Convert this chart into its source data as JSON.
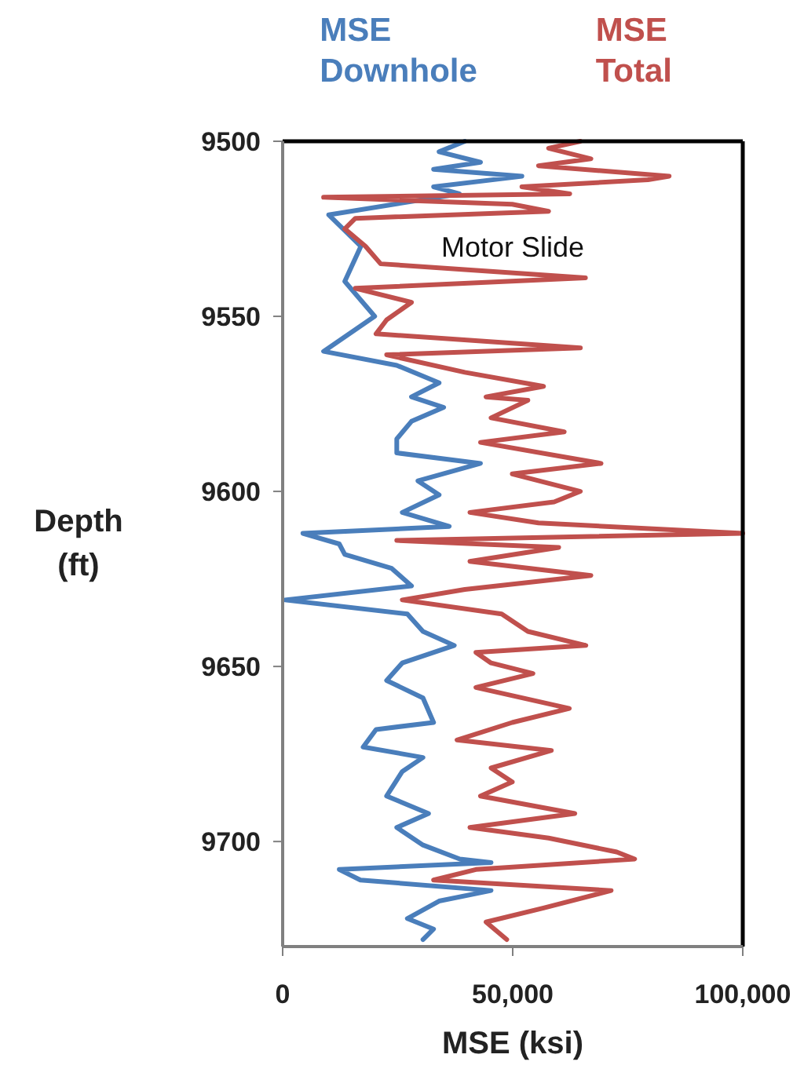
{
  "chart_data": {
    "type": "line",
    "xlabel": "MSE (ksi)",
    "ylabel": "Depth (ft)",
    "xlim": [
      0,
      100000
    ],
    "xticks": [
      0,
      {
        "value": 50000,
        "label": "50,000"
      },
      {
        "value": 100000,
        "label": "100,000"
      }
    ],
    "ylim": [
      9730,
      9500
    ],
    "yticks": [
      9500,
      9550,
      9600,
      9650,
      9700
    ],
    "grid": false,
    "legend": "top",
    "marker": "none",
    "line_style": "solid",
    "annotations": [
      "Motor Slide"
    ],
    "series": [
      {
        "name": "MSE Downhole",
        "color": "#4a7ebb",
        "x": [
          39600,
          34000,
          43000,
          32800,
          52000,
          32800,
          38400,
          10000,
          17000,
          13500,
          20000,
          8900,
          24800,
          34000,
          28000,
          35000,
          28000,
          24800,
          24800,
          43000,
          29400,
          34000,
          26000,
          36200,
          4400,
          12300,
          13500,
          23700,
          28000,
          500,
          27100,
          30500,
          37300,
          26000,
          22600,
          30500,
          32800,
          20300,
          17500,
          30500,
          26000,
          22600,
          31700,
          24800,
          30500,
          38500,
          45300,
          12300,
          16900,
          45300,
          34000,
          27100,
          32800,
          30500
        ],
        "values": [
          9500,
          9503,
          9506,
          9508,
          9510,
          9513,
          9515,
          9521,
          9530,
          9540,
          9550,
          9560,
          9564,
          9569,
          9573,
          9576,
          9580,
          9585,
          9589,
          9592,
          9597,
          9601,
          9606,
          9610,
          9612,
          9615,
          9618,
          9622,
          9627,
          9631,
          9635,
          9640,
          9644,
          9649,
          9654,
          9659,
          9666,
          9668,
          9673,
          9676,
          9680,
          9687,
          9692,
          9696,
          9701,
          9705,
          9706,
          9708,
          9711,
          9714,
          9717,
          9722,
          9725,
          9728
        ]
      },
      {
        "name": "MSE Total",
        "color": "#c0504d",
        "x": [
          64700,
          57800,
          67000,
          55600,
          84000,
          79400,
          52000,
          62400,
          8900,
          49900,
          57800,
          15800,
          13500,
          18000,
          21300,
          65800,
          15800,
          28000,
          22600,
          20300,
          64700,
          22600,
          39600,
          56700,
          44200,
          53300,
          45300,
          61200,
          43000,
          69200,
          49900,
          64700,
          59000,
          40700,
          55600,
          100000,
          24800,
          60000,
          40700,
          67000,
          39600,
          26000,
          47600,
          53300,
          65900,
          42000,
          45300,
          54400,
          42000,
          62300,
          49900,
          37900,
          58400,
          45300,
          49900,
          43000,
          63500,
          40700,
          57800,
          72600,
          76500,
          42000,
          32800,
          71400,
          56700,
          44200,
          48700
        ],
        "values": [
          9500,
          9502,
          9505,
          9507,
          9510,
          9511,
          9513,
          9515,
          9516,
          9518,
          9520,
          9522,
          9525,
          9530,
          9535,
          9539,
          9542,
          9546,
          9551,
          9555,
          9559,
          9561,
          9566,
          9570,
          9573,
          9574,
          9579,
          9583,
          9586,
          9592,
          9595,
          9600,
          9603,
          9606,
          9609,
          9612,
          9614,
          9616,
          9620,
          9624,
          9628,
          9631,
          9635,
          9640,
          9644,
          9646,
          9649,
          9652,
          9656,
          9662,
          9666,
          9671,
          9674,
          9679,
          9683,
          9687,
          9692,
          9696,
          9699,
          9703,
          9705,
          9708,
          9711,
          9714,
          9719,
          9723,
          9728
        ]
      }
    ]
  }
}
